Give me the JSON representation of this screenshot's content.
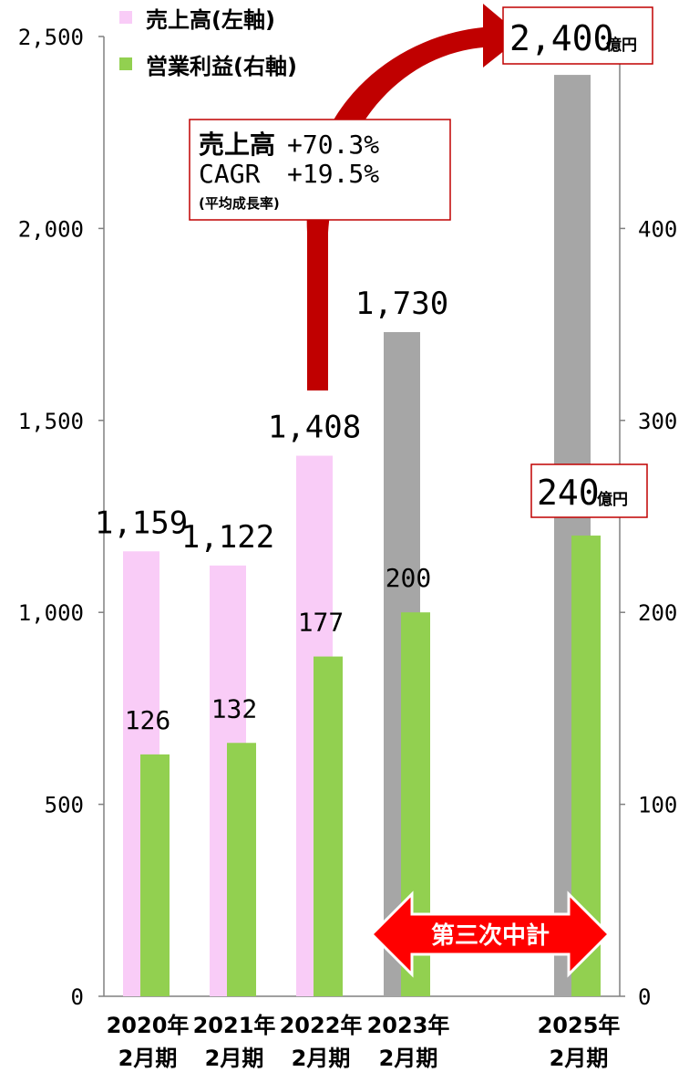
{
  "chart_data": {
    "type": "bar",
    "categories": [
      {
        "line1": "2020年",
        "line2": "2月期"
      },
      {
        "line1": "2021年",
        "line2": "2月期"
      },
      {
        "line1": "2022年",
        "line2": "2月期"
      },
      {
        "line1": "2023年",
        "line2": "2月期"
      },
      {
        "line1": "2025年",
        "line2": "2月期"
      }
    ],
    "series": [
      {
        "name": "売上高(左軸)",
        "axis": "left",
        "values": [
          1159,
          1122,
          1408,
          1730,
          2400
        ],
        "labels": [
          "1,159",
          "1,122",
          "1,408",
          "1,730",
          ""
        ],
        "colors": [
          "#f9ccf7",
          "#f9ccf7",
          "#f9ccf7",
          "#a6a6a6",
          "#a6a6a6"
        ]
      },
      {
        "name": "営業利益(右軸)",
        "axis": "right",
        "values": [
          126,
          132,
          177,
          200,
          240
        ],
        "labels": [
          "126",
          "132",
          "177",
          "200",
          ""
        ],
        "colors": [
          "#92d050",
          "#92d050",
          "#92d050",
          "#92d050",
          "#92d050"
        ]
      }
    ],
    "y_left": {
      "min": 0,
      "max": 2500,
      "ticks": [
        "0",
        "500",
        "1,000",
        "1,500",
        "2,000",
        "2,500"
      ]
    },
    "y_right": {
      "min": 0,
      "max": 500,
      "ticks": [
        "0",
        "100",
        "200",
        "300",
        "400"
      ]
    },
    "legend": {
      "position": "top-left",
      "items": [
        {
          "label": "売上高(左軸)",
          "color": "#f9ccf7"
        },
        {
          "label": "営業利益(右軸)",
          "color": "#92d050"
        }
      ]
    },
    "annotations": {
      "growth_box": {
        "line1_label": "売上高",
        "line1_value": "+70.3%",
        "line2_label": "CAGR",
        "line2_value": "+19.5%",
        "note": "(平均成長率)"
      },
      "sales_target": {
        "value": "2,400",
        "unit": "億円"
      },
      "profit_target": {
        "value": "240",
        "unit": "億円"
      },
      "plan_label": "第三次中計"
    },
    "colors": {
      "arrow": "#c00000",
      "box_border": "#c00000",
      "plan_arrow": "#ff0000",
      "axis": "#808080"
    }
  }
}
